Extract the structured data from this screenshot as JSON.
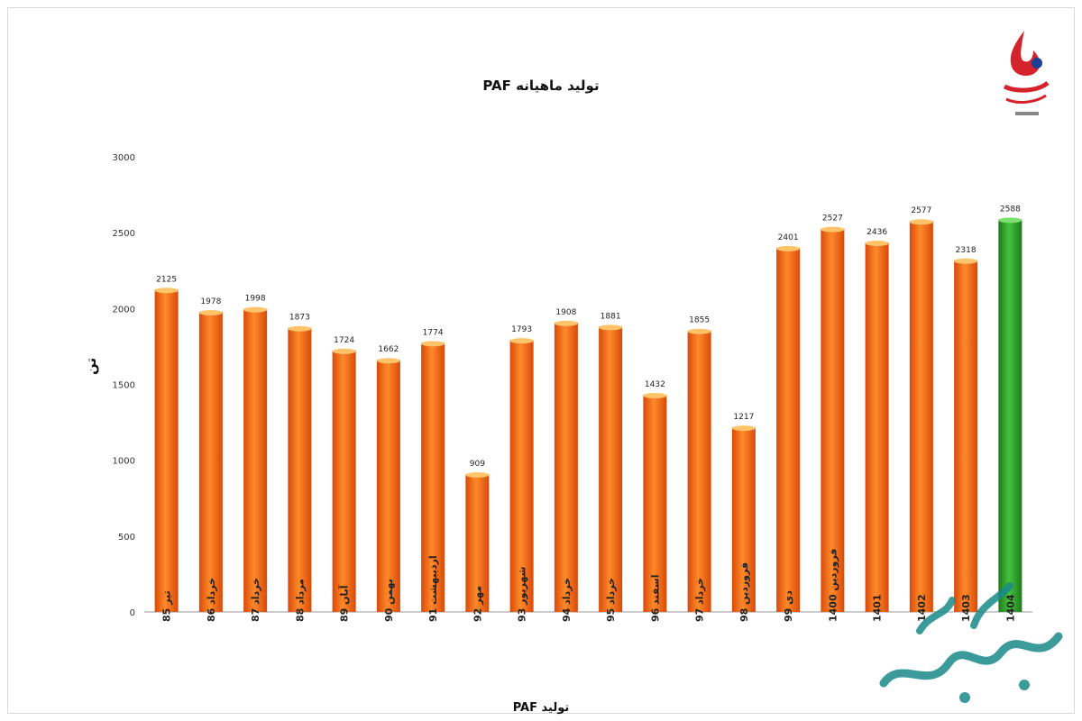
{
  "chart_data": {
    "type": "bar",
    "title": "تولید ماهیانه PAF",
    "xlabel": "تولید PAF",
    "ylabel": "تن",
    "ylim": [
      0,
      3000
    ],
    "yticks": [
      0,
      500,
      1000,
      1500,
      2000,
      2500,
      3000
    ],
    "grid": false,
    "categories": [
      "تیر 85",
      "خرداد 86",
      "خرداد 87",
      "مرداد 88",
      "آبان 89",
      "بهمن 90",
      "اردیبهشت 91",
      "مهر 92",
      "شهریور 93",
      "خرداد 94",
      "خرداد 95",
      "اسفند 96",
      "خرداد 97",
      "فروردین 98",
      "دی 99",
      "فروردین 1400",
      "1401",
      "1402",
      "1403",
      "1404"
    ],
    "values": [
      2125,
      1978,
      1998,
      1873,
      1724,
      1662,
      1774,
      909,
      1793,
      1908,
      1881,
      1432,
      1855,
      1217,
      2401,
      2527,
      2436,
      2577,
      2318,
      2588
    ],
    "colors": {
      "bar": "#f06a16",
      "highlight": "#2f9a2a"
    },
    "highlight_index": 19
  },
  "logo_icon": "refinery-flame-logo-icon",
  "watermark_icon": "calligraphy-watermark-icon"
}
